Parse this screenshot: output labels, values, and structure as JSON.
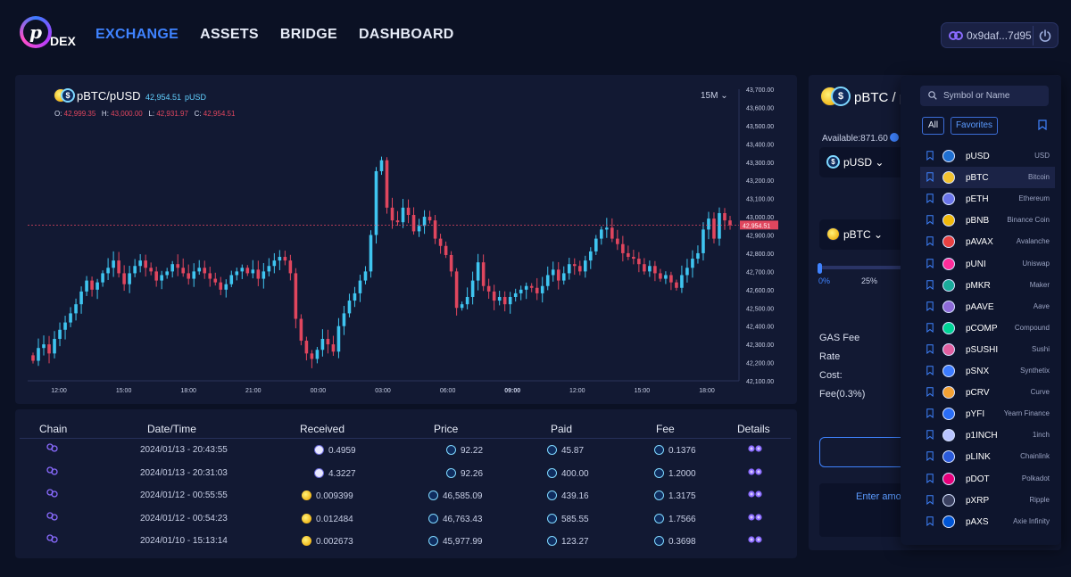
{
  "header": {
    "logo_text": "DEX",
    "nav": [
      "EXCHANGE",
      "ASSETS",
      "BRIDGE",
      "DASHBOARD"
    ],
    "wallet_address": "0x9daf...7d95"
  },
  "pair": {
    "name": "pBTC/pUSD",
    "price": "42,954.51",
    "quote": "pUSD",
    "ohlc": {
      "o": "42,999.35",
      "h": "43,000.00",
      "l": "42,931.97",
      "c": "42,954.51"
    },
    "interval": "15M"
  },
  "chart_data": {
    "type": "candlestick",
    "y_ticks": [
      "43,700.00",
      "43,600.00",
      "43,500.00",
      "43,400.00",
      "43,300.00",
      "43,200.00",
      "43,100.00",
      "43,000.00",
      "42,900.00",
      "42,800.00",
      "42,700.00",
      "42,600.00",
      "42,500.00",
      "42,400.00",
      "42,300.00",
      "42,200.00",
      "42,100.00"
    ],
    "x_ticks": [
      "12:00",
      "15:00",
      "18:00",
      "21:00",
      "00:00",
      "03:00",
      "06:00",
      "09:00",
      "12:00",
      "15:00",
      "18:00"
    ],
    "ylim": [
      42100,
      43700
    ],
    "last_price": 42954.51,
    "last_price_label": "42,954.51",
    "closes": [
      42210,
      42280,
      42300,
      42250,
      42330,
      42380,
      42420,
      42470,
      42520,
      42590,
      42650,
      42600,
      42640,
      42690,
      42720,
      42760,
      42690,
      42630,
      42690,
      42730,
      42760,
      42720,
      42700,
      42650,
      42680,
      42700,
      42740,
      42720,
      42690,
      42660,
      42700,
      42720,
      42690,
      42660,
      42640,
      42600,
      42630,
      42680,
      42700,
      42720,
      42690,
      42710,
      42660,
      42700,
      42730,
      42760,
      42780,
      42760,
      42690,
      42440,
      42320,
      42250,
      42220,
      42270,
      42330,
      42300,
      42260,
      42400,
      42470,
      42540,
      42580,
      42650,
      42700,
      42900,
      43250,
      43310,
      43050,
      42980,
      42970,
      43050,
      43010,
      42920,
      42950,
      43000,
      42980,
      42880,
      42840,
      42790,
      42700,
      42500,
      42520,
      42560,
      42650,
      42750,
      42620,
      42590,
      42540,
      42560,
      42520,
      42560,
      42580,
      42600,
      42620,
      42610,
      42580,
      42620,
      42680,
      42710,
      42650,
      42690,
      42740,
      42730,
      42700,
      42760,
      42810,
      42880,
      42930,
      42940,
      42880,
      42850,
      42800,
      42780,
      42770,
      42740,
      42700,
      42730,
      42690,
      42660,
      42680,
      42640,
      42610,
      42680,
      42720,
      42770,
      42800,
      42930,
      42990,
      42880,
      43020,
      42980,
      42954
    ]
  },
  "table": {
    "headers": [
      "Chain",
      "Date/Time",
      "Received",
      "Price",
      "Paid",
      "Fee",
      "Details"
    ],
    "rows": [
      {
        "date": "2024/01/13 - 20:43:55",
        "received": "0.4959",
        "received_coin": "eth",
        "price": "92.22",
        "paid": "45.87",
        "fee": "0.1376"
      },
      {
        "date": "2024/01/13 - 20:31:03",
        "received": "4.3227",
        "received_coin": "eth",
        "price": "92.26",
        "paid": "400.00",
        "fee": "1.2000"
      },
      {
        "date": "2024/01/12 - 00:55:55",
        "received": "0.009399",
        "received_coin": "btc",
        "price": "46,585.09",
        "paid": "439.16",
        "fee": "1.3175"
      },
      {
        "date": "2024/01/12 - 00:54:23",
        "received": "0.012484",
        "received_coin": "btc",
        "price": "46,763.43",
        "paid": "585.55",
        "fee": "1.7566"
      },
      {
        "date": "2024/01/10 - 15:13:14",
        "received": "0.002673",
        "received_coin": "btc",
        "price": "45,977.99",
        "paid": "123.27",
        "fee": "0.3698"
      }
    ]
  },
  "swap": {
    "title": "pBTC / p",
    "available": "Available:871.60",
    "from_token": "pUSD",
    "to_token": "pBTC",
    "pct_0": "0%",
    "pct_25": "25%",
    "gas_fee": "GAS Fee",
    "rate": "Rate",
    "cost": "Cost:",
    "fee": "Fee(0.3%)",
    "enter_amount": "Enter amo"
  },
  "token_list": {
    "search_placeholder": "Symbol or Name",
    "filter_all": "All",
    "filter_favorites": "Favorites",
    "tokens": [
      {
        "symbol": "pUSD",
        "name": "USD",
        "color": "#1f6fd1"
      },
      {
        "symbol": "pBTC",
        "name": "Bitcoin",
        "color": "#f2c230"
      },
      {
        "symbol": "pETH",
        "name": "Ethereum",
        "color": "#6a74e8"
      },
      {
        "symbol": "pBNB",
        "name": "Binance Coin",
        "color": "#f0b90b"
      },
      {
        "symbol": "pAVAX",
        "name": "Avalanche",
        "color": "#e84142"
      },
      {
        "symbol": "pUNI",
        "name": "Uniswap",
        "color": "#ff2d9a"
      },
      {
        "symbol": "pMKR",
        "name": "Maker",
        "color": "#1aab9b"
      },
      {
        "symbol": "pAAVE",
        "name": "Aave",
        "color": "#8d6bd8"
      },
      {
        "symbol": "pCOMP",
        "name": "Compound",
        "color": "#00d395"
      },
      {
        "symbol": "pSUSHI",
        "name": "Sushi",
        "color": "#e05fa0"
      },
      {
        "symbol": "pSNX",
        "name": "Synthetix",
        "color": "#3d7cff"
      },
      {
        "symbol": "pCRV",
        "name": "Curve",
        "color": "#f4a234"
      },
      {
        "symbol": "pYFI",
        "name": "Yearn Finance",
        "color": "#2a6df5"
      },
      {
        "symbol": "p1INCH",
        "name": "1inch",
        "color": "#b8c4ff"
      },
      {
        "symbol": "pLINK",
        "name": "Chainlink",
        "color": "#2a5ada"
      },
      {
        "symbol": "pDOT",
        "name": "Polkadot",
        "color": "#e6007a"
      },
      {
        "symbol": "pXRP",
        "name": "Ripple",
        "color": "#3a4060"
      },
      {
        "symbol": "pAXS",
        "name": "Axie Infinity",
        "color": "#0055d5"
      }
    ]
  }
}
